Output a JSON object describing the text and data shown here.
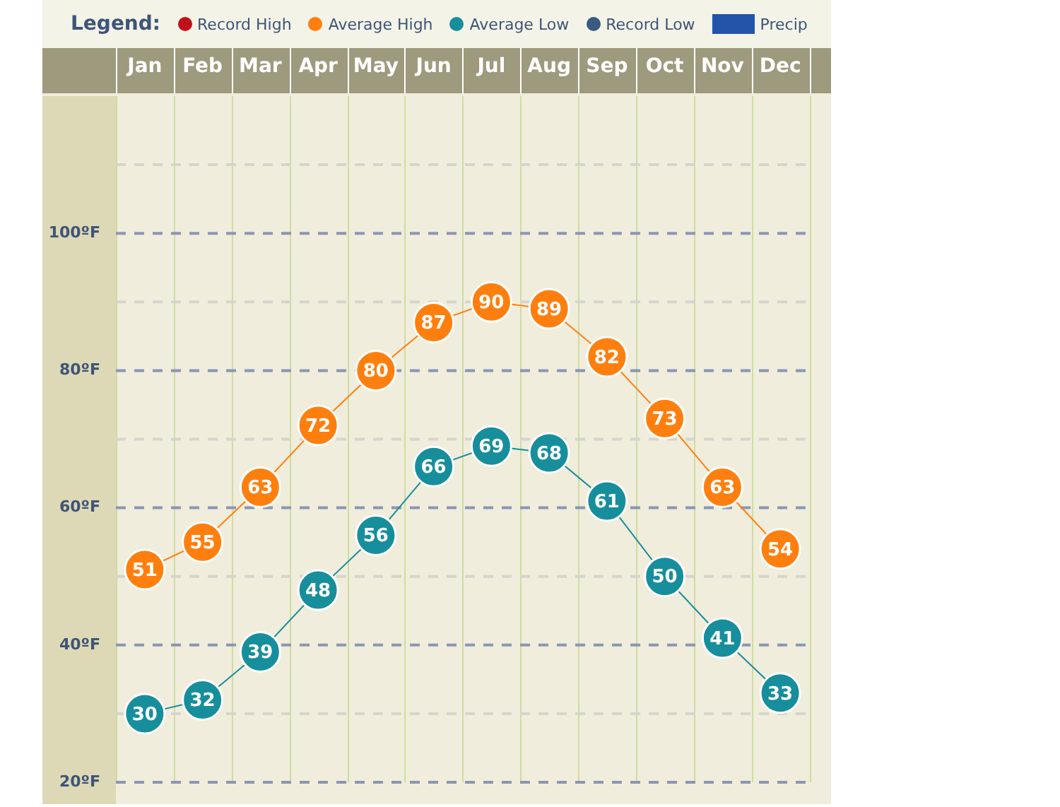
{
  "chart_data": {
    "type": "line",
    "legend_title": "Legend:",
    "categories": [
      "Jan",
      "Feb",
      "Mar",
      "Apr",
      "May",
      "Jun",
      "Jul",
      "Aug",
      "Sep",
      "Oct",
      "Nov",
      "Dec"
    ],
    "series": [
      {
        "name": "Record High",
        "color": "#c0101a",
        "values": [
          null,
          null,
          null,
          null,
          null,
          null,
          null,
          null,
          null,
          null,
          null,
          null
        ]
      },
      {
        "name": "Average High",
        "color": "#ff7f0e",
        "values": [
          51,
          55,
          63,
          72,
          80,
          87,
          90,
          89,
          82,
          73,
          63,
          54
        ]
      },
      {
        "name": "Average Low",
        "color": "#178e9c",
        "values": [
          30,
          32,
          39,
          48,
          56,
          66,
          69,
          68,
          61,
          50,
          41,
          33
        ]
      },
      {
        "name": "Record Low",
        "color": "#3a5a80",
        "values": [
          null,
          null,
          null,
          null,
          null,
          null,
          null,
          null,
          null,
          null,
          null,
          null
        ]
      },
      {
        "name": "Precip",
        "type": "bar",
        "color": "#2255aa",
        "values": [
          null,
          null,
          null,
          null,
          null,
          null,
          null,
          null,
          null,
          null,
          null,
          null
        ]
      }
    ],
    "ylim": [
      20,
      120
    ],
    "yticks": [
      {
        "value": 20,
        "label": "20ºF"
      },
      {
        "value": 30,
        "label": null
      },
      {
        "value": 40,
        "label": "40ºF"
      },
      {
        "value": 50,
        "label": null
      },
      {
        "value": 60,
        "label": "60ºF"
      },
      {
        "value": 70,
        "label": null
      },
      {
        "value": 80,
        "label": "80ºF"
      },
      {
        "value": 90,
        "label": null
      },
      {
        "value": 100,
        "label": "100ºF"
      },
      {
        "value": 110,
        "label": null
      }
    ],
    "grid": true,
    "legend": "top left",
    "marker": "circle",
    "data_labels": true
  }
}
